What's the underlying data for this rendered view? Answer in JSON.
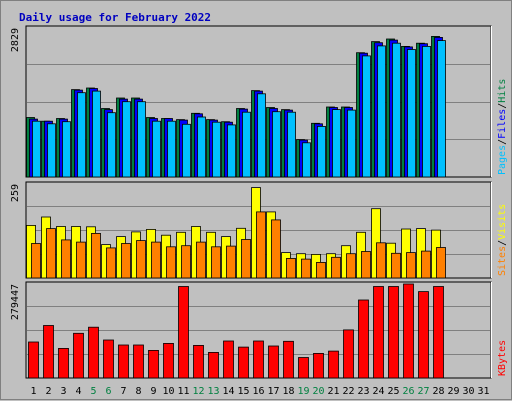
{
  "chart_data": [
    {
      "type": "bar",
      "panel": "pages-files-hits",
      "title": "Daily usage for February 2022",
      "ymax_label": "2829",
      "ylim": [
        0,
        2829
      ],
      "categories": [
        "1",
        "2",
        "3",
        "4",
        "5",
        "6",
        "7",
        "8",
        "9",
        "10",
        "11",
        "12",
        "13",
        "14",
        "15",
        "16",
        "17",
        "18",
        "19",
        "20",
        "21",
        "22",
        "23",
        "24",
        "25",
        "26",
        "27",
        "28",
        "29",
        "30",
        "31"
      ],
      "weekend_days": [
        "5",
        "6",
        "12",
        "13",
        "19",
        "20",
        "26",
        "27"
      ],
      "legend": [
        {
          "label": "Hits",
          "color": "#008040"
        },
        {
          "label": "Files",
          "color": "#0000ff"
        },
        {
          "label": "Pages",
          "color": "#00c0ff"
        }
      ],
      "series": [
        {
          "name": "Hits",
          "color": "#008040",
          "values": [
            1130,
            1060,
            1110,
            1660,
            1690,
            1300,
            1500,
            1500,
            1130,
            1110,
            1090,
            1210,
            1090,
            1050,
            1300,
            1640,
            1320,
            1280,
            710,
            1020,
            1330,
            1330,
            2360,
            2570,
            2620,
            2480,
            2540,
            2670,
            0,
            0,
            0
          ]
        },
        {
          "name": "Files",
          "color": "#0000ff",
          "values": [
            1100,
            1060,
            1100,
            1650,
            1680,
            1280,
            1480,
            1480,
            1110,
            1110,
            1080,
            1200,
            1080,
            1040,
            1290,
            1630,
            1300,
            1270,
            700,
            1010,
            1320,
            1320,
            2350,
            2550,
            2600,
            2470,
            2530,
            2650,
            0,
            0,
            0
          ]
        },
        {
          "name": "Pages",
          "color": "#00c0ff",
          "values": [
            1060,
            1010,
            1050,
            1600,
            1630,
            1220,
            1430,
            1430,
            1060,
            1060,
            1000,
            1140,
            1040,
            990,
            1230,
            1580,
            1240,
            1230,
            650,
            960,
            1280,
            1270,
            2300,
            2490,
            2540,
            2420,
            2480,
            2590,
            0,
            0,
            0
          ]
        }
      ]
    },
    {
      "type": "bar",
      "panel": "visits-sites",
      "ymax_label": "259",
      "ylim": [
        0,
        259
      ],
      "legend": [
        {
          "label": "Visits",
          "color": "#ffff00"
        },
        {
          "label": "Sites",
          "color": "#ff8000"
        }
      ],
      "series": [
        {
          "name": "Visits",
          "color": "#ffff00",
          "values": [
            145,
            168,
            142,
            142,
            141,
            92,
            114,
            127,
            134,
            118,
            126,
            142,
            126,
            114,
            137,
            249,
            182,
            70,
            67,
            65,
            67,
            89,
            126,
            191,
            96,
            135,
            136,
            132,
            0,
            0,
            0
          ]
        },
        {
          "name": "Sites",
          "color": "#ff8000",
          "values": [
            95,
            136,
            105,
            99,
            123,
            83,
            95,
            103,
            99,
            86,
            89,
            99,
            86,
            88,
            106,
            182,
            160,
            54,
            52,
            43,
            57,
            67,
            73,
            97,
            68,
            70,
            74,
            84,
            0,
            0,
            0
          ]
        }
      ]
    },
    {
      "type": "bar",
      "panel": "kbytes",
      "ymax_label": "279447",
      "ylim": [
        0,
        279447
      ],
      "legend": [
        {
          "label": "KBytes",
          "color": "#ff0000"
        }
      ],
      "series": [
        {
          "name": "KBytes",
          "color": "#ff0000",
          "values": [
            107000,
            156000,
            88000,
            133000,
            151000,
            113000,
            98000,
            98000,
            82000,
            103000,
            272000,
            97000,
            76000,
            110000,
            92000,
            110000,
            95000,
            109000,
            61000,
            73000,
            80000,
            143000,
            232000,
            272000,
            272000,
            284000,
            257000,
            272000,
            0,
            0,
            0
          ]
        }
      ]
    }
  ]
}
